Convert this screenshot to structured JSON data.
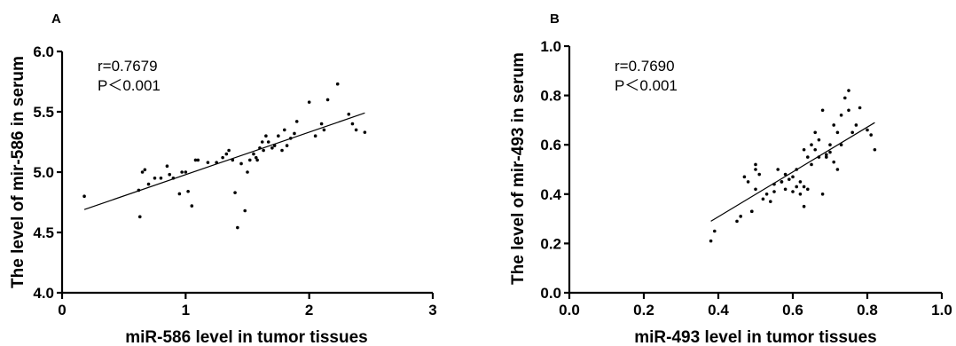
{
  "chart_data": [
    {
      "type": "scatter",
      "panel_label": "A",
      "xlabel": "miR-586 level in tumor tissues",
      "ylabel": "The level of mir-586 in serum",
      "xlim": [
        0,
        3
      ],
      "ylim": [
        4.0,
        6.0
      ],
      "xticks": [
        "0",
        "1",
        "2",
        "3"
      ],
      "yticks": [
        "4.0",
        "4.5",
        "5.0",
        "5.5",
        "6.0"
      ],
      "annotations": [
        "r=0.7679",
        "P＜0.001"
      ],
      "fit_line": {
        "x": [
          0.18,
          2.45
        ],
        "y": [
          4.69,
          5.49
        ]
      },
      "grid": false,
      "x": [
        0.18,
        0.62,
        0.63,
        0.65,
        0.67,
        0.7,
        0.75,
        0.8,
        0.85,
        0.87,
        0.9,
        0.95,
        0.97,
        1.0,
        1.02,
        1.05,
        1.08,
        1.1,
        1.18,
        1.25,
        1.3,
        1.33,
        1.35,
        1.38,
        1.4,
        1.42,
        1.45,
        1.48,
        1.5,
        1.52,
        1.55,
        1.57,
        1.58,
        1.6,
        1.62,
        1.63,
        1.65,
        1.67,
        1.7,
        1.72,
        1.75,
        1.78,
        1.8,
        1.82,
        1.85,
        1.88,
        1.9,
        2.0,
        2.05,
        2.1,
        2.12,
        2.15,
        2.23,
        2.32,
        2.35,
        2.38,
        2.45
      ],
      "y": [
        4.8,
        4.85,
        4.63,
        5.0,
        5.02,
        4.9,
        4.95,
        4.95,
        5.05,
        4.98,
        4.95,
        4.82,
        5.0,
        5.0,
        4.84,
        4.72,
        5.1,
        5.1,
        5.08,
        5.08,
        5.12,
        5.15,
        5.18,
        5.1,
        4.83,
        4.54,
        5.07,
        4.68,
        5.0,
        5.1,
        5.15,
        5.12,
        5.1,
        5.2,
        5.25,
        5.18,
        5.3,
        5.25,
        5.2,
        5.22,
        5.3,
        5.18,
        5.35,
        5.22,
        5.28,
        5.32,
        5.42,
        5.58,
        5.3,
        5.4,
        5.35,
        5.6,
        5.73,
        5.48,
        5.4,
        5.35,
        5.33
      ]
    },
    {
      "type": "scatter",
      "panel_label": "B",
      "xlabel": "miR-493 level in tumor tissues",
      "ylabel": "The level of mir-493 in serum",
      "xlim": [
        0.0,
        1.0
      ],
      "ylim": [
        0.0,
        1.0
      ],
      "xticks": [
        "0.0",
        "0.2",
        "0.4",
        "0.6",
        "0.8",
        "1.0"
      ],
      "yticks": [
        "0.0",
        "0.2",
        "0.4",
        "0.6",
        "0.8",
        "1.0"
      ],
      "annotations": [
        "r=0.7690",
        "P＜0.001"
      ],
      "fit_line": {
        "x": [
          0.38,
          0.82
        ],
        "y": [
          0.29,
          0.69
        ]
      },
      "grid": false,
      "x": [
        0.38,
        0.39,
        0.45,
        0.46,
        0.47,
        0.48,
        0.49,
        0.5,
        0.5,
        0.51,
        0.52,
        0.53,
        0.54,
        0.55,
        0.55,
        0.56,
        0.57,
        0.58,
        0.58,
        0.59,
        0.6,
        0.6,
        0.61,
        0.61,
        0.62,
        0.62,
        0.63,
        0.63,
        0.64,
        0.64,
        0.65,
        0.65,
        0.66,
        0.66,
        0.67,
        0.67,
        0.68,
        0.68,
        0.69,
        0.7,
        0.7,
        0.71,
        0.71,
        0.72,
        0.72,
        0.73,
        0.73,
        0.74,
        0.75,
        0.75,
        0.76,
        0.77,
        0.78,
        0.8,
        0.81,
        0.82,
        0.5,
        0.57,
        0.49,
        0.63,
        0.69
      ],
      "y": [
        0.21,
        0.25,
        0.29,
        0.31,
        0.47,
        0.45,
        0.33,
        0.42,
        0.5,
        0.48,
        0.38,
        0.4,
        0.37,
        0.44,
        0.41,
        0.5,
        0.45,
        0.48,
        0.42,
        0.46,
        0.47,
        0.41,
        0.5,
        0.43,
        0.45,
        0.4,
        0.35,
        0.58,
        0.42,
        0.55,
        0.6,
        0.52,
        0.65,
        0.58,
        0.55,
        0.62,
        0.4,
        0.74,
        0.55,
        0.57,
        0.6,
        0.68,
        0.53,
        0.5,
        0.65,
        0.6,
        0.72,
        0.79,
        0.82,
        0.74,
        0.65,
        0.68,
        0.75,
        0.66,
        0.64,
        0.58,
        0.52,
        0.45,
        0.33,
        0.43,
        0.56
      ]
    }
  ]
}
